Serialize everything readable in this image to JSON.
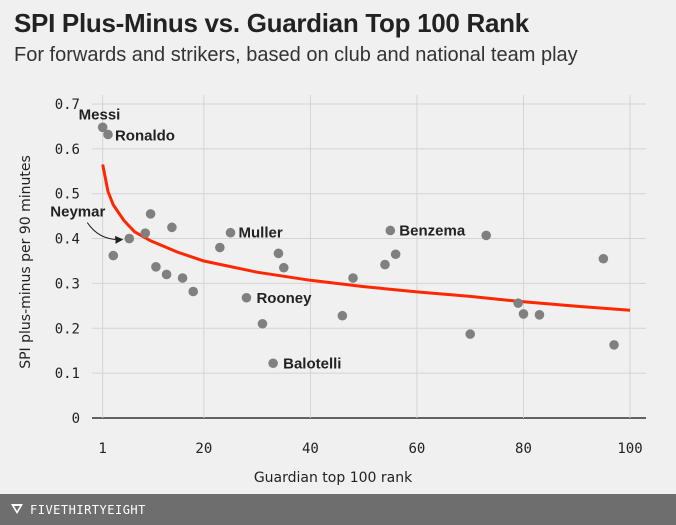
{
  "header": {
    "title": "SPI Plus-Minus vs. Guardian Top 100 Rank",
    "subtitle": "For forwards and strikers, based on club and national team play"
  },
  "footer": {
    "brand": "FIVETHIRTYEIGHT"
  },
  "colors": {
    "point": "#808080",
    "trend": "#ff2700",
    "grid": "#d4d4d4",
    "footer_bg": "#6e6e6e"
  },
  "chart_data": {
    "type": "scatter",
    "title": "SPI Plus-Minus vs. Guardian Top 100 Rank",
    "xlabel": "Guardian top 100 rank",
    "ylabel": "SPI plus-minus per 90 minutes",
    "xlim": [
      -1,
      103
    ],
    "ylim": [
      0,
      0.72
    ],
    "xticks": [
      1,
      20,
      40,
      60,
      80,
      100
    ],
    "xtick_labels": [
      "1",
      "20",
      "40",
      "60",
      "80",
      "100"
    ],
    "yticks": [
      0,
      0.1,
      0.2,
      0.3,
      0.4,
      0.5,
      0.6,
      0.7
    ],
    "ytick_labels": [
      "0",
      "0.1",
      "0.2",
      "0.3",
      "0.4",
      "0.5",
      "0.6",
      "0.7"
    ],
    "points": [
      {
        "x": 1,
        "y": 0.648
      },
      {
        "x": 2,
        "y": 0.632
      },
      {
        "x": 3,
        "y": 0.362
      },
      {
        "x": 6,
        "y": 0.4
      },
      {
        "x": 9,
        "y": 0.412
      },
      {
        "x": 10,
        "y": 0.455
      },
      {
        "x": 11,
        "y": 0.337
      },
      {
        "x": 13,
        "y": 0.32
      },
      {
        "x": 14,
        "y": 0.425
      },
      {
        "x": 16,
        "y": 0.312
      },
      {
        "x": 18,
        "y": 0.282
      },
      {
        "x": 23,
        "y": 0.38
      },
      {
        "x": 25,
        "y": 0.413
      },
      {
        "x": 28,
        "y": 0.268
      },
      {
        "x": 31,
        "y": 0.21
      },
      {
        "x": 33,
        "y": 0.122
      },
      {
        "x": 34,
        "y": 0.367
      },
      {
        "x": 35,
        "y": 0.335
      },
      {
        "x": 46,
        "y": 0.228
      },
      {
        "x": 48,
        "y": 0.312
      },
      {
        "x": 54,
        "y": 0.342
      },
      {
        "x": 55,
        "y": 0.418
      },
      {
        "x": 56,
        "y": 0.365
      },
      {
        "x": 70,
        "y": 0.187
      },
      {
        "x": 73,
        "y": 0.407
      },
      {
        "x": 79,
        "y": 0.256
      },
      {
        "x": 80,
        "y": 0.232
      },
      {
        "x": 83,
        "y": 0.23
      },
      {
        "x": 95,
        "y": 0.355
      },
      {
        "x": 97,
        "y": 0.163
      }
    ],
    "trend_line": {
      "description": "fitted curve",
      "x": [
        1,
        2,
        3,
        5,
        7,
        10,
        15,
        20,
        30,
        40,
        50,
        60,
        70,
        80,
        90,
        100
      ],
      "y": [
        0.565,
        0.505,
        0.475,
        0.44,
        0.415,
        0.395,
        0.37,
        0.35,
        0.325,
        0.307,
        0.293,
        0.281,
        0.271,
        0.259,
        0.249,
        0.24
      ]
    },
    "annotations": [
      {
        "label": "Messi",
        "x": 1,
        "y": 0.648
      },
      {
        "label": "Ronaldo",
        "x": 2,
        "y": 0.632
      },
      {
        "label": "Neymar",
        "x": 6,
        "y": 0.4
      },
      {
        "label": "Muller",
        "x": 25,
        "y": 0.413
      },
      {
        "label": "Benzema",
        "x": 55,
        "y": 0.418
      },
      {
        "label": "Rooney",
        "x": 28,
        "y": 0.268
      },
      {
        "label": "Balotelli",
        "x": 33,
        "y": 0.122
      }
    ],
    "grid": true
  }
}
